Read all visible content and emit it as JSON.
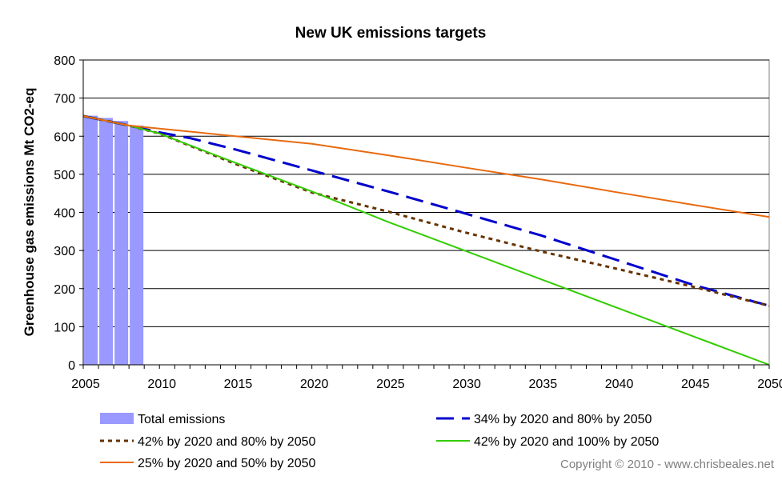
{
  "chart_data": {
    "type": "line",
    "title": "New UK emissions targets",
    "xlabel": "",
    "ylabel": "Greenhouse gas emissions Mt CO2-eq",
    "xlim": [
      2005,
      2050
    ],
    "ylim": [
      0,
      800
    ],
    "x_ticks": [
      2005,
      2010,
      2015,
      2020,
      2025,
      2030,
      2035,
      2040,
      2045,
      2050
    ],
    "y_ticks": [
      0,
      100,
      200,
      300,
      400,
      500,
      600,
      700,
      800
    ],
    "grid": "horizontal",
    "legend_position": "bottom",
    "bars": {
      "name": "Total emissions",
      "color": "#9999ff",
      "x": [
        2005,
        2006,
        2007,
        2008
      ],
      "values": [
        654,
        648,
        640,
        628
      ]
    },
    "series": [
      {
        "name": "34% by 2020 and 80% by 2050",
        "color": "#0000cc",
        "style": "long-dash",
        "x": [
          2005,
          2008,
          2010,
          2012,
          2015,
          2020,
          2025,
          2030,
          2035,
          2040,
          2045,
          2050
        ],
        "values": [
          653,
          628,
          610,
          595,
          565,
          510,
          455,
          398,
          340,
          275,
          210,
          155
        ]
      },
      {
        "name": "42% by 2020 and 80% by 2050",
        "color": "#663300",
        "style": "dotted",
        "x": [
          2005,
          2008,
          2010,
          2015,
          2020,
          2025,
          2030,
          2035,
          2040,
          2045,
          2050
        ],
        "values": [
          653,
          628,
          607,
          527,
          452,
          402,
          348,
          298,
          252,
          205,
          155
        ]
      },
      {
        "name": "42% by 2020 and 100% by 2050",
        "color": "#33cc00",
        "style": "solid",
        "x": [
          2005,
          2008,
          2010,
          2015,
          2020,
          2025,
          2030,
          2035,
          2040,
          2045,
          2050
        ],
        "values": [
          653,
          628,
          607,
          530,
          455,
          375,
          300,
          225,
          150,
          75,
          0
        ]
      },
      {
        "name": "25% by 2020 and 50% by 2050",
        "color": "#e86a10",
        "style": "solid",
        "x": [
          2005,
          2008,
          2010,
          2012,
          2015,
          2018,
          2020,
          2025,
          2030,
          2035,
          2040,
          2045,
          2050
        ],
        "values": [
          653,
          628,
          620,
          612,
          600,
          588,
          580,
          550,
          518,
          487,
          453,
          420,
          388
        ]
      }
    ]
  },
  "credit": "Copyright © 2010 - www.chrisbeales.net"
}
